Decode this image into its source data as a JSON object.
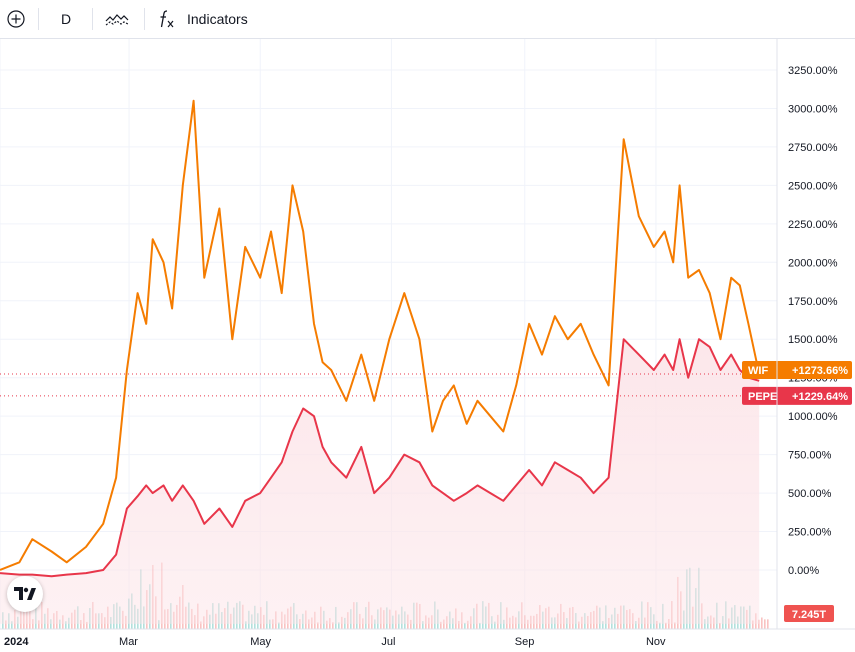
{
  "toolbar": {
    "add_icon": "plus-circle-icon",
    "interval": "D",
    "compare_icon": "compare-symbols-icon",
    "indicators_icon": "fx-icon",
    "indicators_label": "Indicators"
  },
  "colors": {
    "wif": "#f57c00",
    "pepe": "#e8364a",
    "pepe_recent": "#089981",
    "area": "#fce4e8",
    "volume_up": "#26a69a",
    "volume_down": "#ef5350",
    "grid": "#f0f3fa"
  },
  "chart_data": {
    "type": "line",
    "y_unit": "%",
    "ylim": [
      -350,
      3500
    ],
    "y_ticks": [
      "3250.00%",
      "3000.00%",
      "2750.00%",
      "2500.00%",
      "2250.00%",
      "2000.00%",
      "1750.00%",
      "1500.00%",
      "1250.00%",
      "1000.00%",
      "750.00%",
      "500.00%",
      "250.00%",
      "0.00%"
    ],
    "x_ticks": [
      "2024",
      "Mar",
      "May",
      "Jul",
      "Sep",
      "Nov"
    ],
    "grid": true,
    "series": [
      {
        "name": "WIF",
        "last_label": "+1273.66%",
        "x": [
          "2024-01-01",
          "2024-01-10",
          "2024-01-16",
          "2024-01-25",
          "2024-02-01",
          "2024-02-10",
          "2024-02-18",
          "2024-02-24",
          "2024-02-29",
          "2024-03-05",
          "2024-03-09",
          "2024-03-12",
          "2024-03-17",
          "2024-03-21",
          "2024-03-26",
          "2024-03-31",
          "2024-04-05",
          "2024-04-12",
          "2024-04-18",
          "2024-04-24",
          "2024-05-01",
          "2024-05-06",
          "2024-05-11",
          "2024-05-16",
          "2024-05-21",
          "2024-05-26",
          "2024-05-30",
          "2024-06-03",
          "2024-06-10",
          "2024-06-17",
          "2024-06-23",
          "2024-06-30",
          "2024-07-07",
          "2024-07-14",
          "2024-07-20",
          "2024-07-25",
          "2024-07-30",
          "2024-08-05",
          "2024-08-10",
          "2024-08-16",
          "2024-08-22",
          "2024-08-28",
          "2024-09-03",
          "2024-09-09",
          "2024-09-15",
          "2024-09-21",
          "2024-09-27",
          "2024-10-03",
          "2024-10-10",
          "2024-10-17",
          "2024-10-24",
          "2024-10-31",
          "2024-11-05",
          "2024-11-09",
          "2024-11-12",
          "2024-11-16",
          "2024-11-21",
          "2024-11-26",
          "2024-12-01",
          "2024-12-06",
          "2024-12-10",
          "2024-12-14",
          "2024-12-19"
        ],
        "values": [
          0,
          50,
          200,
          120,
          50,
          150,
          300,
          600,
          1300,
          1800,
          1600,
          2150,
          2000,
          1700,
          2500,
          3050,
          1900,
          2350,
          1500,
          2100,
          1900,
          2200,
          1800,
          2500,
          2200,
          1600,
          1350,
          1300,
          1100,
          1400,
          1100,
          1500,
          1800,
          1500,
          900,
          1100,
          1200,
          950,
          1100,
          1000,
          900,
          1200,
          1600,
          1400,
          1650,
          1500,
          1600,
          1400,
          1200,
          2800,
          2300,
          2100,
          2200,
          2000,
          2500,
          1900,
          1950,
          1800,
          1500,
          1900,
          1850,
          1600,
          1273.66
        ]
      },
      {
        "name": "PEPE",
        "last_label": "+1229.64%",
        "x": [
          "2024-01-01",
          "2024-01-10",
          "2024-01-16",
          "2024-01-25",
          "2024-02-01",
          "2024-02-10",
          "2024-02-18",
          "2024-02-24",
          "2024-02-29",
          "2024-03-05",
          "2024-03-09",
          "2024-03-12",
          "2024-03-17",
          "2024-03-21",
          "2024-03-26",
          "2024-03-31",
          "2024-04-05",
          "2024-04-12",
          "2024-04-18",
          "2024-04-24",
          "2024-05-01",
          "2024-05-06",
          "2024-05-11",
          "2024-05-16",
          "2024-05-21",
          "2024-05-26",
          "2024-05-30",
          "2024-06-03",
          "2024-06-10",
          "2024-06-17",
          "2024-06-23",
          "2024-06-30",
          "2024-07-07",
          "2024-07-14",
          "2024-07-20",
          "2024-07-25",
          "2024-07-30",
          "2024-08-05",
          "2024-08-10",
          "2024-08-16",
          "2024-08-22",
          "2024-08-28",
          "2024-09-03",
          "2024-09-09",
          "2024-09-15",
          "2024-09-21",
          "2024-09-27",
          "2024-10-03",
          "2024-10-10",
          "2024-10-17",
          "2024-10-24",
          "2024-10-31",
          "2024-11-05",
          "2024-11-09",
          "2024-11-12",
          "2024-11-16",
          "2024-11-21",
          "2024-11-26",
          "2024-12-01",
          "2024-12-06",
          "2024-12-10",
          "2024-12-14",
          "2024-12-19"
        ],
        "values": [
          -20,
          -30,
          -30,
          -40,
          -30,
          -20,
          0,
          100,
          400,
          480,
          550,
          500,
          550,
          450,
          550,
          450,
          300,
          400,
          280,
          450,
          500,
          600,
          700,
          900,
          1050,
          1000,
          800,
          700,
          600,
          800,
          500,
          600,
          750,
          700,
          550,
          500,
          450,
          500,
          550,
          500,
          450,
          550,
          650,
          550,
          700,
          650,
          600,
          500,
          600,
          1500,
          1400,
          1300,
          1400,
          1300,
          1500,
          1250,
          1500,
          1450,
          1300,
          1400,
          1300,
          1250,
          1229.64
        ]
      }
    ],
    "volume_label": "7.245T"
  }
}
